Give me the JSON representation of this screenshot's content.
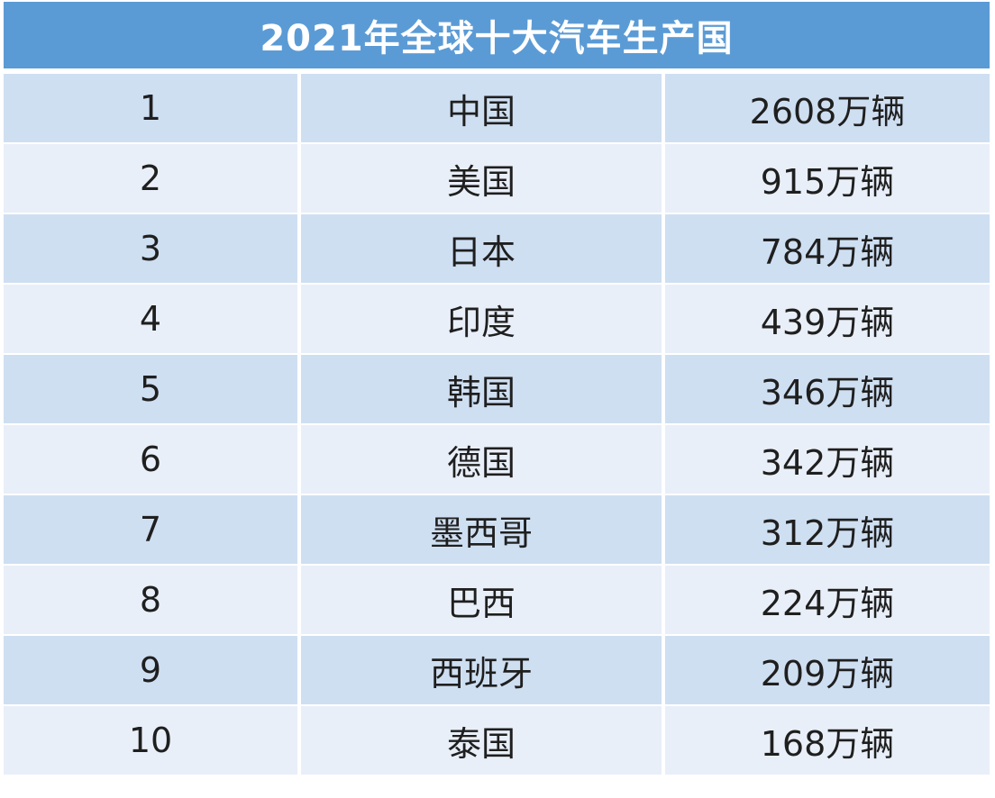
{
  "table": {
    "title": "2021年全球十大汽车生产国",
    "rows": [
      {
        "rank": "1",
        "country": "中国",
        "output": "2608万辆"
      },
      {
        "rank": "2",
        "country": "美国",
        "output": "915万辆"
      },
      {
        "rank": "3",
        "country": "日本",
        "output": "784万辆"
      },
      {
        "rank": "4",
        "country": "印度",
        "output": "439万辆"
      },
      {
        "rank": "5",
        "country": "韩国",
        "output": "346万辆"
      },
      {
        "rank": "6",
        "country": "德国",
        "output": "342万辆"
      },
      {
        "rank": "7",
        "country": "墨西哥",
        "output": "312万辆"
      },
      {
        "rank": "8",
        "country": "巴西",
        "output": "224万辆"
      },
      {
        "rank": "9",
        "country": "西班牙",
        "output": "209万辆"
      },
      {
        "rank": "10",
        "country": "泰国",
        "output": "168万辆"
      }
    ],
    "colors": {
      "header_bg": "#5b9bd5",
      "row_dark": "#cfdff2",
      "row_light": "#e9eff8",
      "text": "#1f1f1f"
    }
  }
}
